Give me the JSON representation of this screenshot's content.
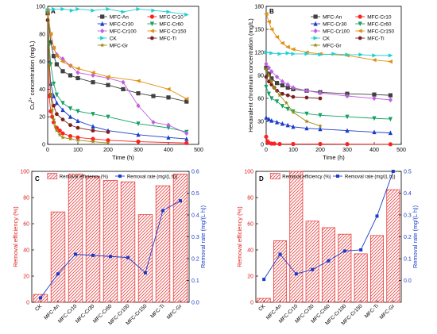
{
  "chart_data": [
    {
      "panel": "A",
      "type": "line",
      "xlabel": "Time (h)",
      "ylabel": "Cu2+ concentration (mg/L)",
      "ylabel_main": "Cu",
      "ylabel_sup": "2+",
      "ylabel_rest": " concentration (mg/L)",
      "xlim": [
        0,
        500
      ],
      "ylim": [
        0,
        100
      ],
      "xticks": [
        0,
        100,
        200,
        300,
        400,
        500
      ],
      "yticks": [
        0,
        20,
        40,
        60,
        80,
        100
      ],
      "legend": "top-right",
      "series": [
        {
          "name": "MFC-An",
          "color": "#404040",
          "marker": "square",
          "x": [
            0,
            10,
            20,
            30,
            50,
            75,
            100,
            150,
            200,
            250,
            300,
            350,
            400,
            460
          ],
          "y": [
            95,
            74,
            64,
            58,
            53,
            50,
            48,
            45,
            43,
            40,
            37,
            35,
            34,
            31
          ]
        },
        {
          "name": "MFC-Cr10",
          "color": "#ff2020",
          "marker": "circle",
          "x": [
            0,
            5,
            10,
            15,
            20,
            30,
            40,
            50,
            75,
            100,
            150,
            200,
            300,
            460
          ],
          "y": [
            96,
            35,
            24,
            20,
            16,
            12,
            10,
            8,
            6,
            5,
            4,
            3,
            2,
            1
          ]
        },
        {
          "name": "MFC-Cr30",
          "color": "#1a3cc8",
          "marker": "triangle-up",
          "x": [
            0,
            5,
            10,
            20,
            30,
            50,
            75,
            100,
            150,
            200,
            300,
            400,
            460
          ],
          "y": [
            97,
            60,
            44,
            35,
            30,
            25,
            20,
            17,
            13,
            10,
            7,
            5,
            4
          ]
        },
        {
          "name": "MFC-Cr60",
          "color": "#14a060",
          "marker": "triangle-down",
          "x": [
            0,
            5,
            10,
            20,
            30,
            50,
            75,
            100,
            150,
            200,
            300,
            400,
            460
          ],
          "y": [
            97,
            72,
            58,
            44,
            36,
            30,
            26,
            24,
            22,
            20,
            15,
            12,
            9
          ]
        },
        {
          "name": "MFC-Cr100",
          "color": "#c060e0",
          "marker": "diamond",
          "x": [
            0,
            10,
            20,
            30,
            50,
            75,
            100,
            150,
            200,
            250,
            300,
            350,
            400,
            460
          ],
          "y": [
            97,
            80,
            70,
            65,
            62,
            57,
            52,
            50,
            48,
            45,
            28,
            16,
            14,
            8
          ]
        },
        {
          "name": "MFC-Cr150",
          "color": "#e09010",
          "marker": "triangle-left",
          "x": [
            0,
            10,
            20,
            30,
            50,
            75,
            100,
            150,
            200,
            300,
            400,
            460
          ],
          "y": [
            97,
            80,
            70,
            64,
            60,
            57,
            55,
            52,
            49,
            46,
            40,
            33
          ]
        },
        {
          "name": "CK",
          "color": "#20d0d0",
          "marker": "triangle-right",
          "x": [
            0,
            20,
            50,
            80,
            100,
            150,
            200,
            250,
            300,
            350,
            400,
            460
          ],
          "y": [
            97,
            98,
            98,
            97,
            98,
            97,
            98,
            96,
            98,
            97,
            96,
            94
          ]
        },
        {
          "name": "MFC-Ti",
          "color": "#7a1e1e",
          "marker": "hexagon",
          "x": [
            0,
            10,
            20,
            30,
            50,
            75,
            100,
            150,
            200
          ],
          "y": [
            90,
            36,
            28,
            22,
            18,
            14,
            12,
            10,
            9
          ]
        },
        {
          "name": "MFC-Gr",
          "color": "#9c8a10",
          "marker": "star",
          "x": [
            0,
            5,
            10,
            15,
            20,
            25,
            30,
            40,
            50,
            75,
            100,
            150,
            200
          ],
          "y": [
            96,
            58,
            36,
            25,
            18,
            13,
            10,
            7,
            5,
            4,
            3,
            2,
            1
          ]
        }
      ]
    },
    {
      "panel": "B",
      "type": "line",
      "xlabel": "Time (h)",
      "ylabel": "Hexavalent chromium concentration (mg/L)",
      "xlim": [
        0,
        500
      ],
      "ylim": [
        0,
        180
      ],
      "xticks": [
        0,
        100,
        200,
        300,
        400,
        500
      ],
      "yticks": [
        0,
        30,
        60,
        90,
        120,
        150,
        180
      ],
      "legend": "top-right",
      "series": [
        {
          "name": "MFC-An",
          "color": "#404040",
          "marker": "square",
          "x": [
            0,
            10,
            20,
            40,
            60,
            80,
            100,
            150,
            200,
            300,
            400,
            460
          ],
          "y": [
            100,
            92,
            86,
            80,
            77,
            74,
            72,
            70,
            68,
            66,
            65,
            64
          ]
        },
        {
          "name": "MFC-Cr10",
          "color": "#ff2020",
          "marker": "circle",
          "x": [
            0,
            5,
            10,
            20,
            30,
            50,
            100,
            200,
            300,
            460
          ],
          "y": [
            10,
            4,
            2,
            1,
            1,
            0.5,
            0.5,
            0.5,
            0.3,
            0.2
          ]
        },
        {
          "name": "MFC-Cr30",
          "color": "#1a3cc8",
          "marker": "triangle-up",
          "x": [
            0,
            10,
            20,
            40,
            60,
            80,
            100,
            150,
            200,
            300,
            400,
            460
          ],
          "y": [
            35,
            33,
            31,
            29,
            27,
            25,
            23,
            21,
            20,
            18,
            16,
            15
          ]
        },
        {
          "name": "MFC-Cr60",
          "color": "#14a060",
          "marker": "triangle-down",
          "x": [
            0,
            10,
            20,
            40,
            60,
            80,
            100,
            150,
            200,
            300,
            400,
            460
          ],
          "y": [
            75,
            66,
            60,
            56,
            50,
            46,
            43,
            40,
            38,
            36,
            34,
            33
          ]
        },
        {
          "name": "MFC-Cr100",
          "color": "#c060e0",
          "marker": "diamond",
          "x": [
            0,
            10,
            20,
            40,
            60,
            80,
            100,
            150,
            200,
            300,
            400,
            460
          ],
          "y": [
            105,
            100,
            95,
            88,
            82,
            78,
            74,
            70,
            67,
            63,
            60,
            58
          ]
        },
        {
          "name": "MFC-Cr150",
          "color": "#e09010",
          "marker": "triangle-left",
          "x": [
            0,
            10,
            20,
            40,
            60,
            80,
            100,
            150,
            200,
            300,
            400,
            460
          ],
          "y": [
            170,
            160,
            150,
            140,
            132,
            127,
            124,
            120,
            118,
            116,
            110,
            108
          ]
        },
        {
          "name": "CK",
          "color": "#20d0d0",
          "marker": "triangle-right",
          "x": [
            0,
            20,
            50,
            80,
            100,
            150,
            200,
            250,
            300,
            350,
            400,
            460
          ],
          "y": [
            120,
            119,
            118,
            119,
            118,
            118,
            117,
            118,
            117,
            117,
            116,
            116
          ]
        },
        {
          "name": "MFC-Ti",
          "color": "#7a1e1e",
          "marker": "hexagon",
          "x": [
            0,
            10,
            20,
            30,
            40,
            60,
            80,
            100,
            150,
            200
          ],
          "y": [
            88,
            82,
            78,
            74,
            70,
            66,
            64,
            62,
            61,
            60
          ]
        },
        {
          "name": "MFC-Gr",
          "color": "#9c8a10",
          "marker": "star",
          "x": [
            0,
            10,
            20,
            30,
            50,
            75,
            100,
            150,
            200
          ],
          "y": [
            98,
            90,
            82,
            74,
            64,
            54,
            42,
            30,
            24
          ]
        }
      ]
    },
    {
      "panel": "C",
      "type": "bar",
      "categories": [
        "CK",
        "MFC-An",
        "MFC-Cr10",
        "MFC-Cr30",
        "MFC-Cr60",
        "MFC-Cr100",
        "MFC-Cr150",
        "MFC-Ti",
        "MFC-Gr"
      ],
      "ylabel": "Removal efficiency (%)",
      "y2label": "Removal rate (mg/(L h))",
      "ylim": [
        0,
        100
      ],
      "y2lim": [
        0.0,
        0.6
      ],
      "yticks": [
        0,
        20,
        40,
        60,
        80,
        100
      ],
      "y2ticks": [
        0.0,
        0.1,
        0.2,
        0.3,
        0.4,
        0.5,
        0.6
      ],
      "legend": "top",
      "series": [
        {
          "name": "Removal efficiency (%)",
          "axis": "left",
          "color": "#e84040",
          "values": [
            6,
            69,
            98,
            96,
            93,
            92,
            67,
            89,
            98
          ]
        },
        {
          "name": "Removal rate (mg/(L h))",
          "axis": "right",
          "color": "#1a3cc8",
          "values": [
            0.02,
            0.13,
            0.22,
            0.215,
            0.21,
            0.205,
            0.135,
            0.42,
            0.465
          ]
        }
      ]
    },
    {
      "panel": "D",
      "type": "bar",
      "categories": [
        "CK",
        "MFC-An",
        "MFC-Cr10",
        "MFC-Cr30",
        "MFC-Cr60",
        "MFC-Cr100",
        "MFC-Cr150",
        "MFC-Ti",
        "MFC-Gr"
      ],
      "ylabel": "Removal efficiency (%)",
      "y2label": "Removal rate (mg/(L h))",
      "ylim": [
        0,
        100
      ],
      "y2lim": [
        -0.1,
        0.5
      ],
      "yticks": [
        0,
        20,
        40,
        60,
        80,
        100
      ],
      "y2ticks": [
        0.0,
        0.1,
        0.2,
        0.3,
        0.4,
        0.5
      ],
      "legend": "top",
      "series": [
        {
          "name": "Removal efficiency (%)",
          "axis": "left",
          "color": "#e84040",
          "values": [
            3,
            47,
            100,
            62,
            57,
            52,
            37,
            51,
            86
          ]
        },
        {
          "name": "Removal rate (mg/(L h))",
          "axis": "right",
          "color": "#1a3cc8",
          "values": [
            0.005,
            0.12,
            0.03,
            0.05,
            0.09,
            0.135,
            0.14,
            0.295,
            0.5
          ]
        }
      ]
    }
  ]
}
